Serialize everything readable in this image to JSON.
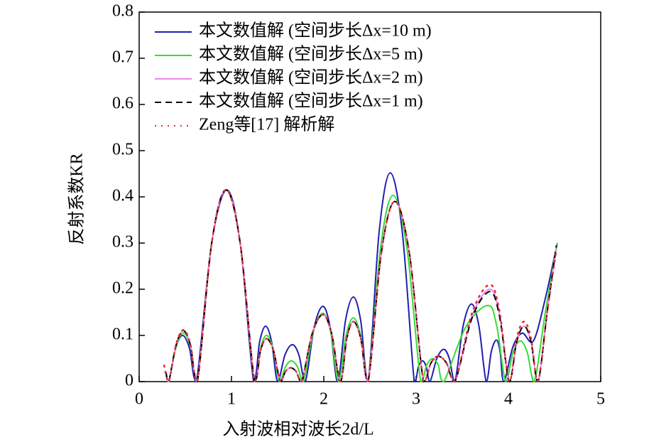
{
  "chart_data": {
    "type": "line",
    "xlabel": "入射波相对波长2d/L",
    "ylabel": "反射系数KR",
    "xlim": [
      0,
      5
    ],
    "xticks": [
      0,
      1,
      2,
      3,
      4,
      5
    ],
    "ylim": [
      0,
      0.8
    ],
    "yticks": [
      0,
      0.1,
      0.2,
      0.3,
      0.4,
      0.5,
      0.6,
      0.7,
      0.8
    ],
    "legend": "upper left",
    "series": [
      {
        "name": "本文数值解 (空间步长Δx=10 m)",
        "color": "#1f1fb0",
        "style": "solid",
        "x": [
          0.29,
          0.32,
          0.395,
          0.47,
          0.545,
          0.62,
          0.785,
          0.95,
          1.095,
          1.24,
          1.305,
          1.37,
          1.435,
          1.5,
          1.58,
          1.66,
          1.73,
          1.8,
          1.895,
          1.99,
          2.07,
          2.15,
          2.235,
          2.32,
          2.4,
          2.48,
          2.6,
          2.72,
          2.85,
          2.98,
          3.025,
          3.07,
          3.11,
          3.15,
          3.225,
          3.3,
          3.36,
          3.42,
          3.51,
          3.6,
          3.68,
          3.76,
          3.815,
          3.87,
          3.91,
          3.95,
          4.05,
          4.15,
          4.27,
          4.4,
          4.53
        ],
        "values": [
          0.02,
          0,
          0.072,
          0.1,
          0.072,
          0,
          0.299,
          0.415,
          0.299,
          0,
          0.086,
          0.12,
          0.086,
          0,
          0.058,
          0.08,
          0.058,
          0,
          0.117,
          0.163,
          0.117,
          0,
          0.132,
          0.183,
          0.132,
          0,
          0.325,
          0.452,
          0.325,
          0,
          0.032,
          0.045,
          0.032,
          0,
          0.05,
          0.07,
          0.05,
          0,
          0.121,
          0.168,
          0.121,
          0,
          0.065,
          0.09,
          0.065,
          0,
          0.076,
          0.105,
          0.088,
          0.18,
          0.3
        ]
      },
      {
        "name": "本文数值解 (空间步长Δx=5 m)",
        "color": "#33dd33",
        "style": "solid",
        "x": [
          0.29,
          0.32,
          0.4,
          0.48,
          0.555,
          0.63,
          0.785,
          0.94,
          1.095,
          1.25,
          1.315,
          1.38,
          1.45,
          1.52,
          1.585,
          1.65,
          1.715,
          1.78,
          1.885,
          1.99,
          2.075,
          2.16,
          2.24,
          2.32,
          2.4,
          2.48,
          2.615,
          2.75,
          2.9,
          3.05,
          3.115,
          3.18,
          3.24,
          3.3,
          3.54,
          3.78,
          3.875,
          3.97,
          4.05,
          4.13,
          4.205,
          4.28,
          4.4,
          4.53
        ],
        "values": [
          0.02,
          0,
          0.076,
          0.105,
          0.076,
          0,
          0.299,
          0.415,
          0.299,
          0,
          0.072,
          0.1,
          0.072,
          0,
          0.032,
          0.045,
          0.032,
          0,
          0.107,
          0.148,
          0.107,
          0,
          0.099,
          0.138,
          0.099,
          0,
          0.29,
          0.403,
          0.29,
          0,
          0.036,
          0.05,
          0.036,
          0,
          0.119,
          0.165,
          0.119,
          0,
          0.063,
          0.088,
          0.063,
          0,
          0.15,
          0.3
        ]
      },
      {
        "name": "本文数值解 (空间步长Δx=2 m)",
        "color": "#ee88ee",
        "style": "solid",
        "x": [
          0.29,
          0.32,
          0.4,
          0.48,
          0.555,
          0.63,
          0.785,
          0.94,
          1.095,
          1.25,
          1.315,
          1.38,
          1.455,
          1.53,
          1.585,
          1.64,
          1.7,
          1.76,
          1.875,
          1.99,
          2.085,
          2.18,
          2.25,
          2.32,
          2.4,
          2.48,
          2.625,
          2.77,
          2.925,
          3.08,
          3.16,
          3.24,
          3.33,
          3.42,
          3.61,
          3.8,
          3.905,
          4.01,
          4.09,
          4.17,
          4.245,
          4.32,
          4.42,
          4.52
        ],
        "values": [
          0.02,
          0,
          0.079,
          0.11,
          0.079,
          0,
          0.299,
          0.415,
          0.299,
          0,
          0.067,
          0.093,
          0.067,
          0,
          0.022,
          0.03,
          0.022,
          0,
          0.104,
          0.145,
          0.104,
          0,
          0.094,
          0.13,
          0.094,
          0,
          0.281,
          0.39,
          0.281,
          0,
          0.04,
          0.055,
          0.04,
          0,
          0.144,
          0.2,
          0.144,
          0,
          0.086,
          0.12,
          0.086,
          0,
          0.15,
          0.295
        ]
      },
      {
        "name": "本文数值解 (空间步长Δx=1 m)",
        "color": "#000000",
        "style": "dashed",
        "x": [
          0.29,
          0.32,
          0.4,
          0.48,
          0.555,
          0.63,
          0.785,
          0.94,
          1.095,
          1.25,
          1.315,
          1.38,
          1.455,
          1.53,
          1.585,
          1.64,
          1.7,
          1.76,
          1.875,
          1.99,
          2.085,
          2.18,
          2.25,
          2.32,
          2.4,
          2.48,
          2.625,
          2.77,
          2.925,
          3.08,
          3.16,
          3.24,
          3.33,
          3.42,
          3.61,
          3.8,
          3.905,
          4.01,
          4.09,
          4.17,
          4.245,
          4.32,
          4.42,
          4.52
        ],
        "values": [
          0.02,
          0,
          0.079,
          0.11,
          0.079,
          0,
          0.299,
          0.415,
          0.299,
          0,
          0.067,
          0.093,
          0.067,
          0,
          0.022,
          0.03,
          0.022,
          0,
          0.104,
          0.145,
          0.104,
          0,
          0.094,
          0.13,
          0.094,
          0,
          0.281,
          0.39,
          0.281,
          0,
          0.04,
          0.055,
          0.04,
          0,
          0.14,
          0.195,
          0.14,
          0,
          0.086,
          0.12,
          0.086,
          0,
          0.15,
          0.295
        ]
      },
      {
        "name": "Zeng等[17] 解析解",
        "color": "#e03030",
        "style": "dotted",
        "x": [
          0.27,
          0.32,
          0.4,
          0.48,
          0.555,
          0.63,
          0.785,
          0.94,
          1.095,
          1.25,
          1.315,
          1.38,
          1.455,
          1.53,
          1.585,
          1.64,
          1.7,
          1.76,
          1.875,
          1.99,
          2.085,
          2.18,
          2.25,
          2.32,
          2.4,
          2.48,
          2.625,
          2.77,
          2.925,
          3.08,
          3.16,
          3.24,
          3.33,
          3.42,
          3.61,
          3.8,
          3.905,
          4.01,
          4.09,
          4.17,
          4.245,
          4.32,
          4.42,
          4.52
        ],
        "values": [
          0.035,
          0,
          0.081,
          0.112,
          0.081,
          0,
          0.299,
          0.415,
          0.299,
          0,
          0.067,
          0.093,
          0.067,
          0,
          0.022,
          0.03,
          0.022,
          0,
          0.104,
          0.145,
          0.104,
          0,
          0.094,
          0.13,
          0.094,
          0,
          0.281,
          0.39,
          0.281,
          0,
          0.04,
          0.055,
          0.04,
          0,
          0.151,
          0.21,
          0.151,
          0,
          0.094,
          0.13,
          0.094,
          0,
          0.15,
          0.285
        ]
      }
    ]
  }
}
